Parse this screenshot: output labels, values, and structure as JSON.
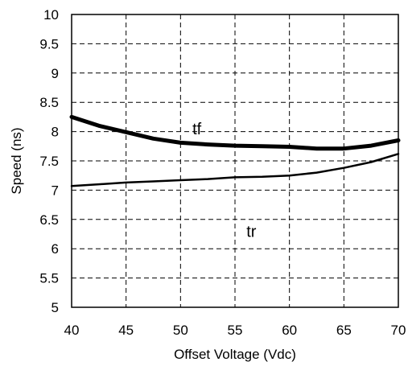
{
  "chart_data": {
    "type": "line",
    "xlabel": "Offset Voltage (Vdc)",
    "ylabel": "Speed (ns)",
    "xlim": [
      40,
      70
    ],
    "ylim": [
      5,
      10
    ],
    "xticks": [
      40,
      45,
      50,
      55,
      60,
      65,
      70
    ],
    "yticks": [
      5,
      5.5,
      6,
      6.5,
      7,
      7.5,
      8,
      8.5,
      9,
      9.5,
      10
    ],
    "grid": true,
    "series": [
      {
        "name": "tf",
        "x": [
          40,
          42.5,
          45,
          47.5,
          50,
          52.5,
          55,
          57.5,
          60,
          62.5,
          65,
          67.5,
          70
        ],
        "y": [
          8.25,
          8.1,
          7.99,
          7.88,
          7.81,
          7.78,
          7.76,
          7.75,
          7.74,
          7.71,
          7.71,
          7.76,
          7.85
        ]
      },
      {
        "name": "tr",
        "x": [
          40,
          42.5,
          45,
          47.5,
          50,
          52.5,
          55,
          57.5,
          60,
          62.5,
          65,
          67.5,
          70
        ],
        "y": [
          7.07,
          7.1,
          7.13,
          7.15,
          7.17,
          7.19,
          7.22,
          7.23,
          7.25,
          7.3,
          7.38,
          7.48,
          7.62
        ]
      }
    ],
    "annotations": [
      {
        "text": "tf",
        "x": 51.5,
        "y": 7.95
      },
      {
        "text": "tr",
        "x": 56.5,
        "y": 6.2
      }
    ]
  }
}
